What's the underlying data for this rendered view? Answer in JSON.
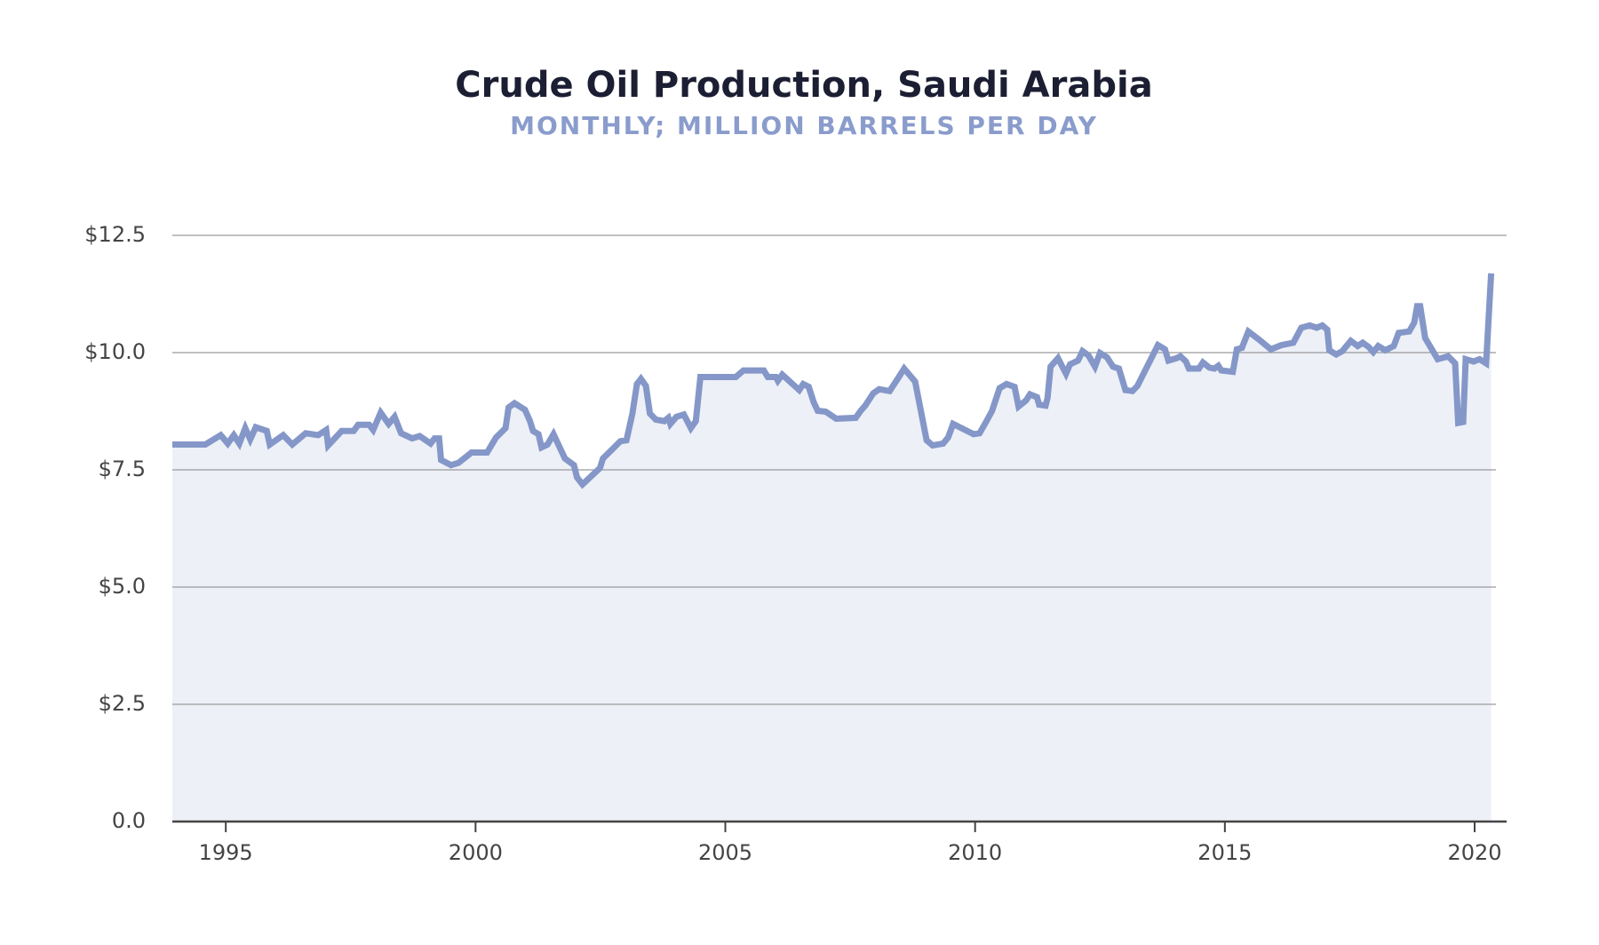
{
  "chart_data": {
    "type": "line",
    "title": "Crude Oil Production, Saudi Arabia",
    "subtitle": "MONTHLY; MILLION BARRELS PER DAY",
    "color": "#8497c8",
    "fill_color": "#edf0f7",
    "grid": true,
    "xlim": [
      1993.93,
      2020.64
    ],
    "xticks": [
      1995,
      2000,
      2005,
      2010,
      2015,
      2020
    ],
    "ylim": [
      0,
      12.5
    ],
    "yticks": [
      {
        "value": 0,
        "label": "0.0"
      },
      {
        "value": 2.5,
        "label": "$2.5"
      },
      {
        "value": 5,
        "label": "$5.0"
      },
      {
        "value": 7.5,
        "label": "$7.5"
      },
      {
        "value": 10,
        "label": "$10.0"
      },
      {
        "value": 12.5,
        "label": "$12.5"
      }
    ],
    "x": [
      1993.93,
      1994.59,
      1994.9,
      1995.04,
      1995.16,
      1995.27,
      1995.39,
      1995.49,
      1995.6,
      1995.82,
      1995.88,
      1996.15,
      1996.33,
      1996.6,
      1996.85,
      1997.01,
      1997.05,
      1997.32,
      1997.56,
      1997.65,
      1997.87,
      1997.95,
      1998.1,
      1998.26,
      1998.38,
      1998.51,
      1998.73,
      1998.88,
      1999.1,
      1999.18,
      1999.27,
      1999.31,
      1999.51,
      1999.66,
      1999.92,
      2000.23,
      2000.41,
      2000.6,
      2000.66,
      2000.78,
      2000.99,
      2001.09,
      2001.15,
      2001.26,
      2001.32,
      2001.44,
      2001.56,
      2001.79,
      2001.97,
      2002.03,
      2002.14,
      2002.49,
      2002.55,
      2002.9,
      2003.02,
      2003.14,
      2003.23,
      2003.31,
      2003.41,
      2003.49,
      2003.61,
      2003.78,
      2003.86,
      2003.9,
      2004.02,
      2004.17,
      2004.31,
      2004.41,
      2004.5,
      2005.21,
      2005.36,
      2005.77,
      2005.85,
      2006.01,
      2006.05,
      2006.14,
      2006.48,
      2006.56,
      2006.67,
      2006.77,
      2006.85,
      2007.01,
      2007.22,
      2007.61,
      2007.71,
      2007.8,
      2007.96,
      2008.08,
      2008.29,
      2008.45,
      2008.58,
      2008.8,
      2009.03,
      2009.15,
      2009.36,
      2009.46,
      2009.56,
      2009.97,
      2010.09,
      2010.22,
      2010.34,
      2010.49,
      2010.63,
      2010.79,
      2010.87,
      2011.02,
      2011.1,
      2011.24,
      2011.28,
      2011.41,
      2011.45,
      2011.51,
      2011.66,
      2011.82,
      2011.9,
      2012.06,
      2012.15,
      2012.27,
      2012.4,
      2012.5,
      2012.64,
      2012.76,
      2012.88,
      2013.01,
      2013.15,
      2013.25,
      2013.66,
      2013.8,
      2013.87,
      2014.03,
      2014.11,
      2014.22,
      2014.28,
      2014.48,
      2014.56,
      2014.69,
      2014.79,
      2014.87,
      2014.93,
      2015.16,
      2015.24,
      2015.34,
      2015.47,
      2015.67,
      2015.92,
      2016.13,
      2016.37,
      2016.53,
      2016.7,
      2016.84,
      2016.95,
      2017.05,
      2017.09,
      2017.23,
      2017.35,
      2017.52,
      2017.66,
      2017.76,
      2017.88,
      2017.97,
      2018.07,
      2018.21,
      2018.38,
      2018.48,
      2018.69,
      2018.79,
      2018.85,
      2018.91,
      2019.01,
      2019.26,
      2019.47,
      2019.61,
      2019.67,
      2019.77,
      2019.82,
      2019.98,
      2020.1,
      2020.23,
      2020.33
    ],
    "values": [
      8.04,
      8.04,
      8.24,
      8.06,
      8.24,
      8.06,
      8.39,
      8.15,
      8.41,
      8.33,
      8.04,
      8.24,
      8.04,
      8.28,
      8.24,
      8.35,
      8.02,
      8.33,
      8.33,
      8.46,
      8.46,
      8.35,
      8.72,
      8.48,
      8.63,
      8.28,
      8.17,
      8.22,
      8.06,
      8.17,
      8.17,
      7.71,
      7.6,
      7.65,
      7.87,
      7.87,
      8.19,
      8.39,
      8.83,
      8.92,
      8.78,
      8.54,
      8.33,
      8.26,
      7.98,
      8.04,
      8.26,
      7.74,
      7.6,
      7.34,
      7.19,
      7.54,
      7.74,
      8.11,
      8.13,
      8.7,
      9.33,
      9.44,
      9.29,
      8.7,
      8.57,
      8.54,
      8.61,
      8.48,
      8.63,
      8.68,
      8.39,
      8.54,
      9.48,
      9.48,
      9.62,
      9.62,
      9.48,
      9.48,
      9.4,
      9.53,
      9.2,
      9.33,
      9.27,
      8.94,
      8.76,
      8.74,
      8.59,
      8.61,
      8.76,
      8.87,
      9.13,
      9.22,
      9.18,
      9.44,
      9.66,
      9.38,
      8.13,
      8.02,
      8.06,
      8.19,
      8.48,
      8.26,
      8.28,
      8.52,
      8.76,
      9.24,
      9.33,
      9.27,
      8.85,
      8.98,
      9.11,
      9.05,
      8.89,
      8.87,
      9.03,
      9.7,
      9.88,
      9.55,
      9.75,
      9.83,
      10.03,
      9.94,
      9.7,
      9.99,
      9.9,
      9.7,
      9.66,
      9.2,
      9.18,
      9.29,
      10.16,
      10.07,
      9.83,
      9.88,
      9.92,
      9.81,
      9.66,
      9.66,
      9.79,
      9.68,
      9.66,
      9.72,
      9.62,
      9.59,
      10.07,
      10.1,
      10.45,
      10.29,
      10.07,
      10.16,
      10.21,
      10.53,
      10.58,
      10.53,
      10.58,
      10.49,
      10.05,
      9.96,
      10.03,
      10.25,
      10.14,
      10.21,
      10.12,
      10.01,
      10.14,
      10.05,
      10.14,
      10.42,
      10.45,
      10.64,
      10.99,
      10.99,
      10.31,
      9.86,
      9.92,
      9.77,
      8.5,
      8.52,
      9.86,
      9.81,
      9.86,
      9.77,
      11.69
    ]
  }
}
